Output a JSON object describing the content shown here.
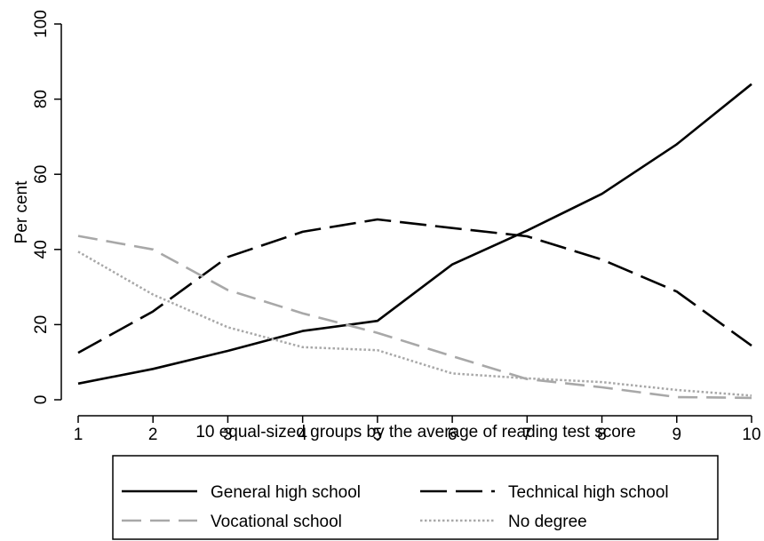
{
  "chart_data": {
    "type": "line",
    "title": "",
    "xlabel": "10 equal-sized groups by the average of reading test score",
    "ylabel": "Per cent",
    "x": [
      1,
      2,
      3,
      4,
      5,
      6,
      7,
      8,
      9,
      10
    ],
    "xticks": [
      "1",
      "2",
      "3",
      "4",
      "5",
      "6",
      "7",
      "8",
      "9",
      "10"
    ],
    "yticks": [
      "0",
      "20",
      "40",
      "60",
      "80",
      "100"
    ],
    "xlim": [
      1,
      10
    ],
    "ylim": [
      0,
      100
    ],
    "grid": false,
    "legend_position": "bottom",
    "series": [
      {
        "name": "General high school",
        "color": "#000000",
        "dash": "solid",
        "values": [
          4.3,
          8.2,
          13.0,
          18.3,
          21.0,
          36.0,
          45.0,
          54.8,
          68.0,
          84.0
        ]
      },
      {
        "name": "Technical high school",
        "color": "#000000",
        "dash": "longdash",
        "values": [
          12.5,
          23.5,
          38.0,
          44.7,
          48.0,
          45.7,
          43.5,
          37.3,
          28.8,
          14.4
        ]
      },
      {
        "name": "Vocational school",
        "color": "#a8a8a8",
        "dash": "dash",
        "values": [
          43.6,
          40.0,
          29.2,
          23.0,
          17.8,
          11.6,
          5.5,
          3.3,
          0.7,
          0.5
        ]
      },
      {
        "name": "No degree",
        "color": "#a8a8a8",
        "dash": "dot",
        "values": [
          39.4,
          28.0,
          19.3,
          14.0,
          13.2,
          7.0,
          5.7,
          4.7,
          2.6,
          1.1
        ]
      }
    ]
  }
}
